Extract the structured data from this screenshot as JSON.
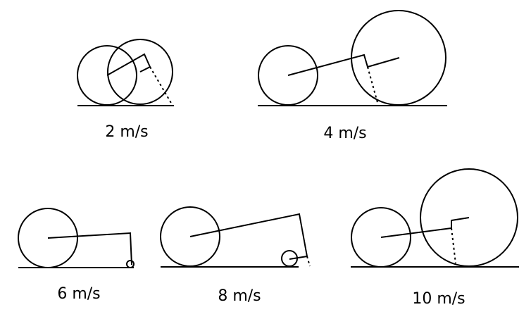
{
  "panels": [
    {
      "speed_label": "2 m/s"
    },
    {
      "speed_label": "4 m/s"
    },
    {
      "speed_label": "6 m/s"
    },
    {
      "speed_label": "8 m/s"
    },
    {
      "speed_label": "10 m/s"
    }
  ],
  "colors": {
    "ink": "#000000",
    "background": "#ffffff"
  }
}
